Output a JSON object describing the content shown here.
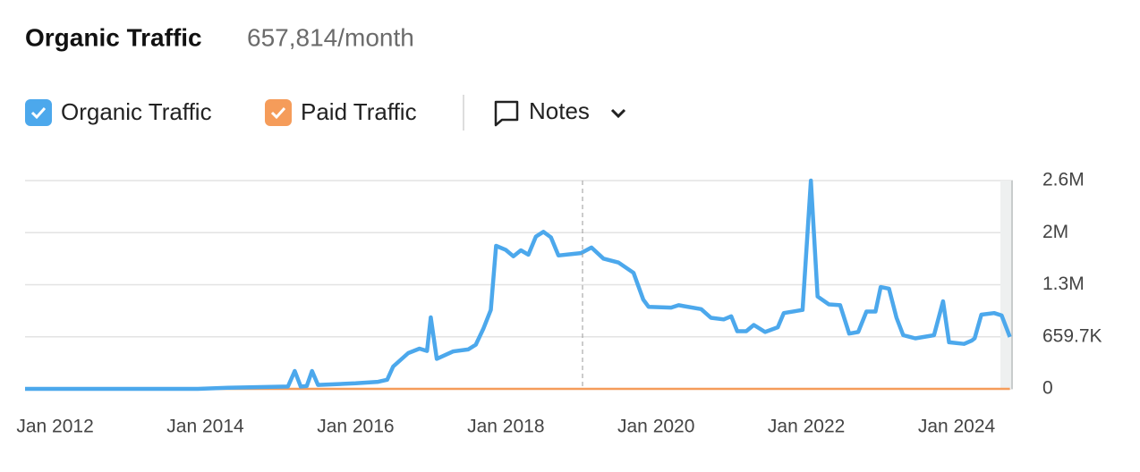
{
  "header": {
    "title": "Organic Traffic",
    "value": "657,814/month"
  },
  "notes_button": "Notes",
  "chart_data": {
    "type": "line",
    "x": [
      2011.6,
      2013.9,
      2014.3,
      2015.1,
      2015.19,
      2015.27,
      2015.35,
      2015.42,
      2015.5,
      2016.0,
      2016.3,
      2016.42,
      2016.5,
      2016.7,
      2016.85,
      2016.95,
      2017.0,
      2017.08,
      2017.3,
      2017.5,
      2017.6,
      2017.7,
      2017.8,
      2017.87,
      2018.0,
      2018.1,
      2018.2,
      2018.3,
      2018.4,
      2018.5,
      2018.6,
      2018.7,
      2018.9,
      2019.0,
      2019.14,
      2019.3,
      2019.5,
      2019.7,
      2019.83,
      2019.9,
      2020.2,
      2020.3,
      2020.6,
      2020.73,
      2020.9,
      2021.0,
      2021.08,
      2021.2,
      2021.3,
      2021.45,
      2021.62,
      2021.7,
      2021.95,
      2022.06,
      2022.15,
      2022.3,
      2022.45,
      2022.57,
      2022.69,
      2022.8,
      2022.92,
      2022.99,
      2023.1,
      2023.2,
      2023.29,
      2023.45,
      2023.7,
      2023.82,
      2023.9,
      2024.1,
      2024.2,
      2024.24,
      2024.33,
      2024.5,
      2024.6,
      2024.71
    ],
    "series": [
      {
        "name": "Organic Traffic",
        "color": "#4ca8ec",
        "values": [
          0,
          0,
          15000,
          30000,
          226000,
          30000,
          35000,
          226000,
          50000,
          70000,
          90000,
          115000,
          283000,
          453000,
          510000,
          480000,
          906000,
          380000,
          475000,
          500000,
          560000,
          760000,
          1000000,
          1812000,
          1760000,
          1680000,
          1755000,
          1700000,
          1930000,
          1990000,
          1920000,
          1690000,
          1710000,
          1720000,
          1790000,
          1650000,
          1600000,
          1470000,
          1130000,
          1040000,
          1030000,
          1060000,
          1010000,
          900000,
          880000,
          920000,
          730000,
          730000,
          810000,
          720000,
          780000,
          960000,
          1000000,
          2639000,
          1170000,
          1070000,
          1060000,
          700000,
          720000,
          980000,
          980000,
          1290000,
          1270000,
          900000,
          680000,
          640000,
          680000,
          1110000,
          590000,
          570000,
          610000,
          640000,
          940000,
          960000,
          930000,
          657814
        ]
      },
      {
        "name": "Paid Traffic",
        "color": "#f59c5a",
        "values": [
          0,
          0,
          0,
          0,
          0,
          0,
          0,
          0,
          0,
          0,
          0,
          0,
          0,
          0,
          0,
          0,
          0,
          0,
          0,
          0,
          0,
          0,
          0,
          0,
          0,
          0,
          0,
          0,
          0,
          0,
          0,
          0,
          0,
          0,
          0,
          0,
          0,
          0,
          0,
          0,
          0,
          0,
          0,
          0,
          0,
          0,
          0,
          0,
          0,
          0,
          0,
          0,
          0,
          0,
          0,
          0,
          0,
          0,
          0,
          0,
          0,
          0,
          0,
          0,
          0,
          0,
          0,
          0,
          0,
          0,
          0,
          0,
          0,
          0,
          0,
          0
        ]
      }
    ],
    "xlim": [
      2011.6,
      2024.75
    ],
    "xticks": [
      {
        "value": 2012,
        "label": "Jan 2012"
      },
      {
        "value": 2014,
        "label": "Jan 2014"
      },
      {
        "value": 2016,
        "label": "Jan 2016"
      },
      {
        "value": 2018,
        "label": "Jan 2018"
      },
      {
        "value": 2020,
        "label": "Jan 2020"
      },
      {
        "value": 2022,
        "label": "Jan 2022"
      },
      {
        "value": 2024,
        "label": "Jan 2024"
      }
    ],
    "ylim": [
      0,
      2638800
    ],
    "yticks": [
      0,
      {
        "value": 659700,
        "label": "659.7K"
      },
      {
        "value": 1319400,
        "label": "1.3M"
      },
      {
        "value": 1979100,
        "label": "2M"
      },
      {
        "value": 2638800,
        "label": "2.6M"
      }
    ],
    "grid": true
  }
}
